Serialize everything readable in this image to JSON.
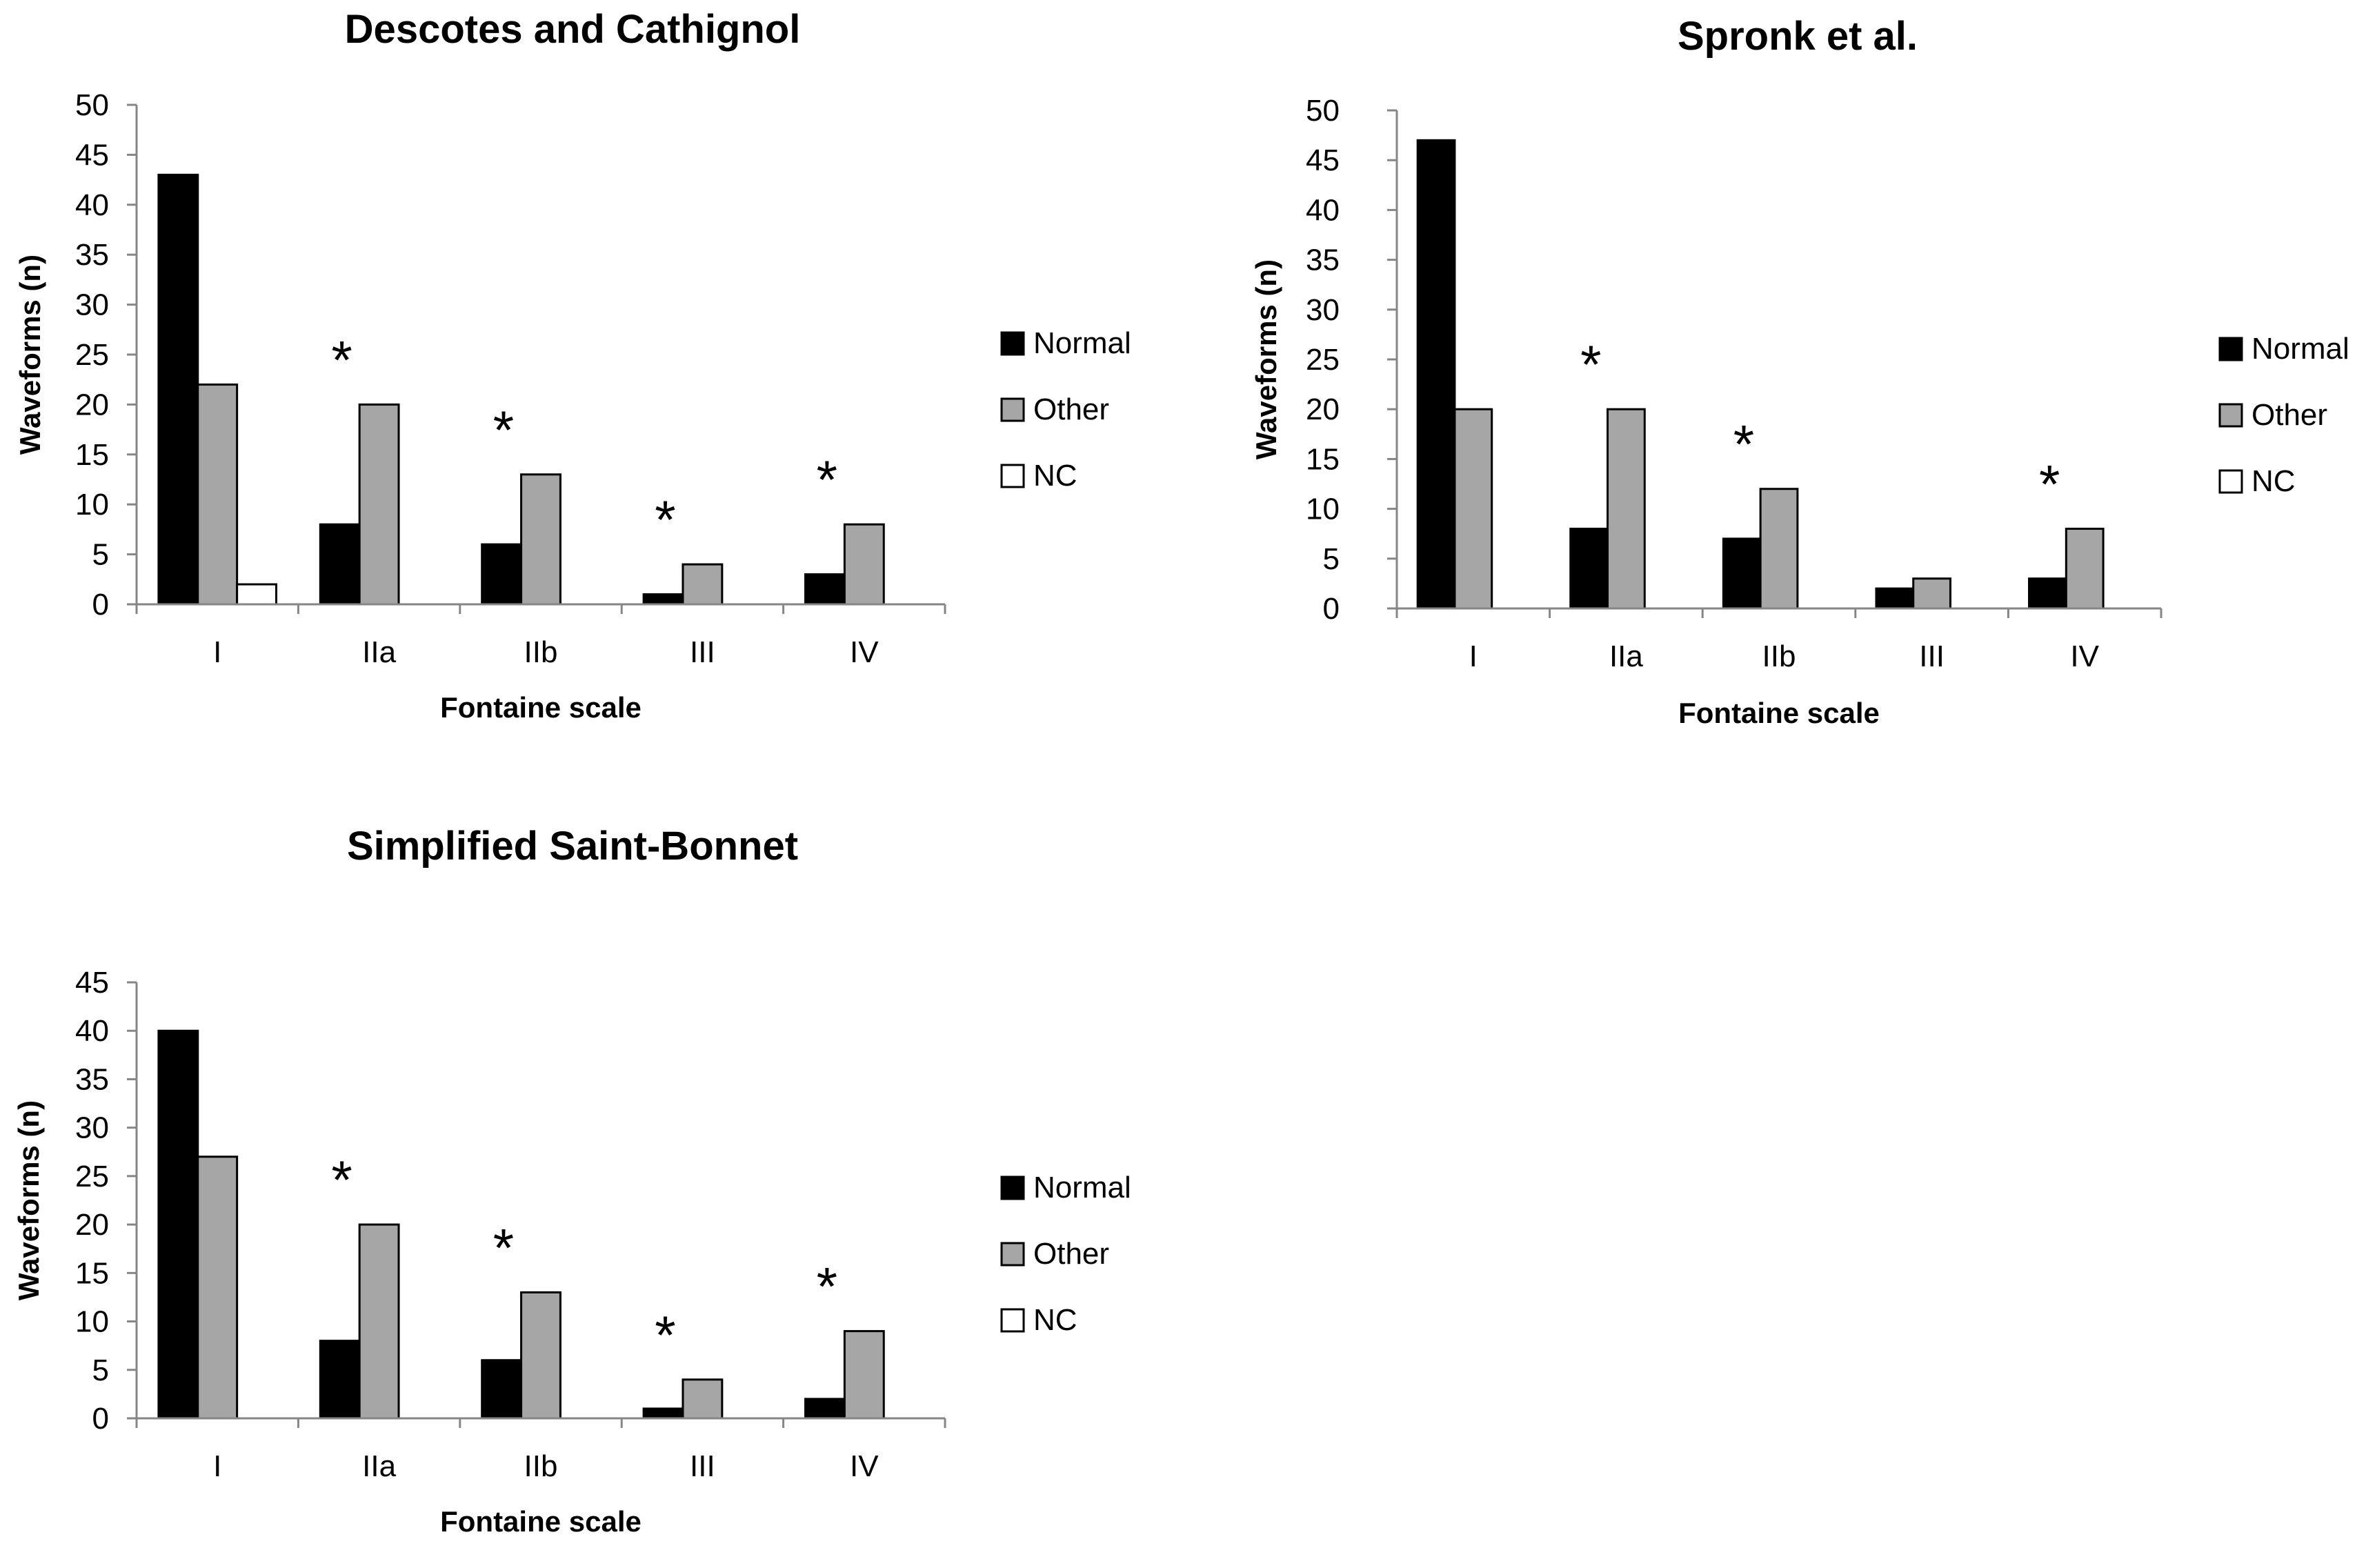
{
  "figure": {
    "description_free": true
  },
  "chart_data": [
    {
      "type": "bar",
      "title": "Descotes and Cathignol",
      "xlabel": "Fontaine scale",
      "ylabel": "Waveforms (n)",
      "ylim": [
        0,
        50
      ],
      "ytick_step": 5,
      "categories": [
        "I",
        "IIa",
        "IIb",
        "III",
        "IV"
      ],
      "series": [
        {
          "name": "Normal",
          "color": "#000000",
          "values": [
            43,
            8,
            6,
            1,
            3
          ]
        },
        {
          "name": "Other",
          "color": "#a6a6a6",
          "values": [
            22,
            20,
            13,
            4,
            8
          ]
        },
        {
          "name": "NC",
          "color": "#ffffff",
          "values": [
            2,
            0,
            0,
            0,
            0
          ]
        }
      ],
      "annotations": [
        "",
        "*",
        "*",
        "*",
        "*"
      ],
      "legend_position": "right"
    },
    {
      "type": "bar",
      "title": "Spronk et al.",
      "xlabel": "Fontaine scale",
      "ylabel": "Waveforms (n)",
      "ylim": [
        0,
        50
      ],
      "ytick_step": 5,
      "categories": [
        "I",
        "IIa",
        "IIb",
        "III",
        "IV"
      ],
      "series": [
        {
          "name": "Normal",
          "color": "#000000",
          "values": [
            47,
            8,
            7,
            2,
            3
          ]
        },
        {
          "name": "Other",
          "color": "#a6a6a6",
          "values": [
            20,
            20,
            12,
            3,
            8
          ]
        },
        {
          "name": "NC",
          "color": "#ffffff",
          "values": [
            0,
            0,
            0,
            0,
            0
          ]
        }
      ],
      "annotations": [
        "",
        "*",
        "*",
        "",
        "*"
      ],
      "legend_position": "right"
    },
    {
      "type": "bar",
      "title": "Simplified Saint-Bonnet",
      "xlabel": "Fontaine scale",
      "ylabel": "Waveforms (n)",
      "ylim": [
        0,
        45
      ],
      "ytick_step": 5,
      "categories": [
        "I",
        "IIa",
        "IIb",
        "III",
        "IV"
      ],
      "series": [
        {
          "name": "Normal",
          "color": "#000000",
          "values": [
            40,
            8,
            6,
            1,
            2
          ]
        },
        {
          "name": "Other",
          "color": "#a6a6a6",
          "values": [
            27,
            20,
            13,
            4,
            9
          ]
        },
        {
          "name": "NC",
          "color": "#ffffff",
          "values": [
            0,
            0,
            0,
            0,
            0
          ]
        }
      ],
      "annotations": [
        "",
        "*",
        "*",
        "*",
        "*"
      ],
      "legend_position": "right"
    }
  ]
}
